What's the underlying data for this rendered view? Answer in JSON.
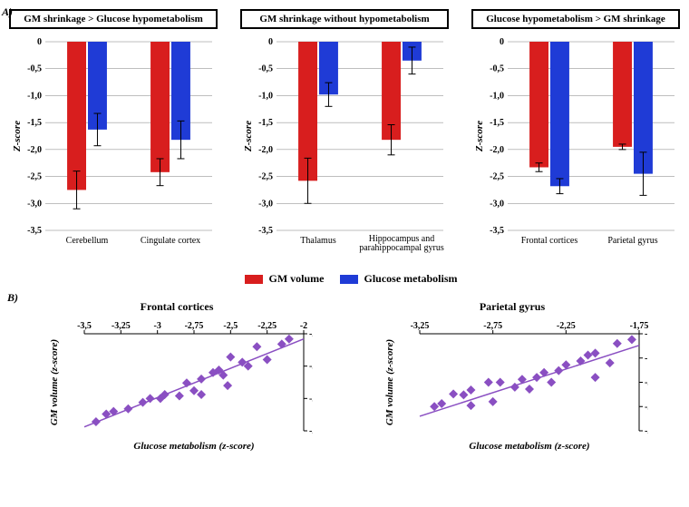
{
  "panel_labels": {
    "a": "A)",
    "b": "B)"
  },
  "colors": {
    "gm": "#d81e1e",
    "glucose": "#1f3bd6",
    "error": "#000000",
    "grid": "#7f7f7f",
    "scatter_marker": "#8a4fc2",
    "scatter_line": "#8a4fc2"
  },
  "bar_plot": {
    "ylim": [
      -3.5,
      0
    ],
    "ytick_step": 0.5,
    "ylabel": "Z-score",
    "bar_width": 0.35,
    "groups": [
      {
        "title": "GM shrinkage > Glucose hypometabolism",
        "categories": [
          "Cerebellum",
          "Cingulate cortex"
        ],
        "gm": {
          "values": [
            -2.75,
            -2.42
          ],
          "err": [
            0.35,
            0.25
          ]
        },
        "glucose": {
          "values": [
            -1.63,
            -1.82
          ],
          "err": [
            0.3,
            0.35
          ]
        }
      },
      {
        "title": "GM shrinkage without hypometabolism",
        "categories": [
          "Thalamus",
          "Hippocampus and parahippocampal gyrus"
        ],
        "gm": {
          "values": [
            -2.58,
            -1.82
          ],
          "err": [
            0.42,
            0.28
          ]
        },
        "glucose": {
          "values": [
            -0.98,
            -0.35
          ],
          "err": [
            0.22,
            0.25
          ]
        }
      },
      {
        "title": "Glucose hypometabolism > GM shrinkage",
        "categories": [
          "Frontal cortices",
          "Parietal gyrus"
        ],
        "gm": {
          "values": [
            -2.33,
            -1.95
          ],
          "err": [
            0.08,
            0.05
          ]
        },
        "glucose": {
          "values": [
            -2.68,
            -2.45
          ],
          "err": [
            0.14,
            0.4
          ]
        }
      }
    ]
  },
  "legend": {
    "gm_label": "GM volume",
    "glucose_label": "Glucose metabolism"
  },
  "scatter": {
    "marker_size": 5,
    "plots": [
      {
        "title": "Frontal cortices",
        "xlabel": "Glucose metabolism (z-score)",
        "ylabel": "GM volume (z-score)",
        "xlim": [
          -3.5,
          -2.0
        ],
        "xtick_step": 0.25,
        "ylim": [
          -2.75,
          -2.0
        ],
        "ytick_step": 0.25,
        "line": {
          "x1": -3.5,
          "y1": -2.72,
          "x2": -2.0,
          "y2": -2.04
        },
        "points": [
          [
            -2.1,
            -2.04
          ],
          [
            -2.15,
            -2.08
          ],
          [
            -2.25,
            -2.2
          ],
          [
            -2.32,
            -2.1
          ],
          [
            -2.38,
            -2.25
          ],
          [
            -2.42,
            -2.22
          ],
          [
            -2.5,
            -2.18
          ],
          [
            -2.58,
            -2.28
          ],
          [
            -2.55,
            -2.32
          ],
          [
            -2.62,
            -2.3
          ],
          [
            -2.52,
            -2.4
          ],
          [
            -2.7,
            -2.35
          ],
          [
            -2.8,
            -2.38
          ],
          [
            -2.75,
            -2.44
          ],
          [
            -2.7,
            -2.47
          ],
          [
            -2.85,
            -2.48
          ],
          [
            -2.95,
            -2.47
          ],
          [
            -2.98,
            -2.5
          ],
          [
            -3.05,
            -2.5
          ],
          [
            -3.1,
            -2.53
          ],
          [
            -3.2,
            -2.58
          ],
          [
            -3.3,
            -2.6
          ],
          [
            -3.35,
            -2.62
          ],
          [
            -3.42,
            -2.68
          ]
        ]
      },
      {
        "title": "Parietal gyrus",
        "xlabel": "Glucose metabolism (z-score)",
        "ylabel": "GM volume (z-score)",
        "xlim": [
          -3.25,
          -1.75
        ],
        "xtick_step": 0.5,
        "ylim": [
          -2.5,
          -1.5
        ],
        "ytick_step": 0.25,
        "line": {
          "x1": -3.25,
          "y1": -2.35,
          "x2": -1.75,
          "y2": -1.62
        },
        "points": [
          [
            -1.8,
            -1.56
          ],
          [
            -1.9,
            -1.6
          ],
          [
            -1.95,
            -1.8
          ],
          [
            -2.05,
            -1.7
          ],
          [
            -2.1,
            -1.72
          ],
          [
            -2.15,
            -1.78
          ],
          [
            -2.25,
            -1.82
          ],
          [
            -2.05,
            -1.95
          ],
          [
            -2.3,
            -1.88
          ],
          [
            -2.4,
            -1.9
          ],
          [
            -2.35,
            -2.0
          ],
          [
            -2.45,
            -1.95
          ],
          [
            -2.55,
            -1.97
          ],
          [
            -2.5,
            -2.07
          ],
          [
            -2.6,
            -2.05
          ],
          [
            -2.7,
            -2.0
          ],
          [
            -2.78,
            -2.0
          ],
          [
            -2.9,
            -2.08
          ],
          [
            -2.95,
            -2.13
          ],
          [
            -3.02,
            -2.12
          ],
          [
            -2.75,
            -2.2
          ],
          [
            -2.9,
            -2.24
          ],
          [
            -3.1,
            -2.22
          ],
          [
            -3.15,
            -2.25
          ]
        ]
      }
    ]
  }
}
